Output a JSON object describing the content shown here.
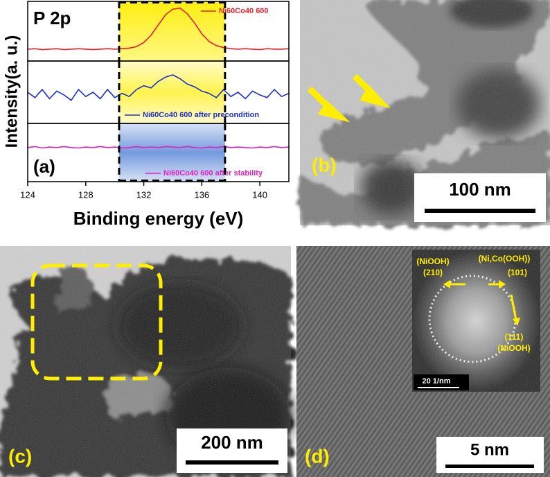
{
  "chart_data": [
    {
      "type": "line",
      "label": "P 2p",
      "ylabel": "Intensity(a. u.)",
      "xlim": [
        124,
        142
      ],
      "ylim": [
        0,
        1
      ],
      "highlight": [
        130.3,
        137.6
      ],
      "highlight_color": "#ffee00",
      "legend": "upper right",
      "x": [
        124,
        124.5,
        125,
        125.5,
        126,
        126.5,
        127,
        127.5,
        128,
        128.5,
        129,
        129.5,
        130,
        130.5,
        131,
        131.5,
        132,
        132.5,
        133,
        133.5,
        134,
        134.5,
        135,
        135.5,
        136,
        136.5,
        137,
        137.5,
        138,
        138.5,
        139,
        139.5,
        140,
        140.5,
        141,
        141.5,
        142
      ],
      "series": [
        {
          "name": "Ni60Co40 600",
          "color": "#e8202a",
          "values": [
            0.15,
            0.16,
            0.14,
            0.15,
            0.16,
            0.14,
            0.15,
            0.16,
            0.15,
            0.14,
            0.15,
            0.16,
            0.15,
            0.16,
            0.17,
            0.2,
            0.28,
            0.42,
            0.62,
            0.82,
            0.93,
            0.95,
            0.84,
            0.66,
            0.45,
            0.3,
            0.22,
            0.18,
            0.16,
            0.15,
            0.16,
            0.15,
            0.14,
            0.16,
            0.15,
            0.15,
            0.16
          ]
        }
      ]
    },
    {
      "type": "line",
      "xlim": [
        124,
        142
      ],
      "ylim": [
        0,
        1
      ],
      "highlight": [
        130.3,
        137.6
      ],
      "highlight_color": "#ffee00",
      "legend": "lower right",
      "x": [
        124,
        124.5,
        125,
        125.5,
        126,
        126.5,
        127,
        127.5,
        128,
        128.5,
        129,
        129.5,
        130,
        130.5,
        131,
        131.5,
        132,
        132.5,
        133,
        133.5,
        134,
        134.5,
        135,
        135.5,
        136,
        136.5,
        137,
        137.5,
        138,
        138.5,
        139,
        139.5,
        140,
        140.5,
        141,
        141.5,
        142
      ],
      "series": [
        {
          "name": "Ni60Co40 600 after precondition",
          "color": "#1a2fc8",
          "values": [
            0.5,
            0.4,
            0.55,
            0.38,
            0.52,
            0.45,
            0.35,
            0.55,
            0.42,
            0.5,
            0.38,
            0.55,
            0.4,
            0.48,
            0.42,
            0.55,
            0.62,
            0.58,
            0.7,
            0.78,
            0.82,
            0.75,
            0.65,
            0.6,
            0.52,
            0.48,
            0.4,
            0.55,
            0.42,
            0.5,
            0.38,
            0.52,
            0.45,
            0.4,
            0.55,
            0.42,
            0.48
          ]
        }
      ]
    },
    {
      "type": "line",
      "label": "(a)",
      "xlabel": "Binding energy (eV)",
      "xlim": [
        124,
        142
      ],
      "ylim": [
        0,
        1
      ],
      "xticks": [
        124,
        128,
        132,
        136,
        140
      ],
      "highlight": [
        130.3,
        137.6
      ],
      "highlight_color": "#3a6fd0",
      "legend": "lower right",
      "x": [
        124,
        124.5,
        125,
        125.5,
        126,
        126.5,
        127,
        127.5,
        128,
        128.5,
        129,
        129.5,
        130,
        130.5,
        131,
        131.5,
        132,
        132.5,
        133,
        133.5,
        134,
        134.5,
        135,
        135.5,
        136,
        136.5,
        137,
        137.5,
        138,
        138.5,
        139,
        139.5,
        140,
        140.5,
        141,
        141.5,
        142
      ],
      "series": [
        {
          "name": "Ni60Co40 600 after stability",
          "color": "#e020c0",
          "values": [
            0.6,
            0.62,
            0.59,
            0.61,
            0.6,
            0.62,
            0.6,
            0.59,
            0.61,
            0.6,
            0.62,
            0.6,
            0.61,
            0.59,
            0.6,
            0.62,
            0.6,
            0.61,
            0.6,
            0.62,
            0.61,
            0.6,
            0.62,
            0.6,
            0.59,
            0.61,
            0.6,
            0.62,
            0.6,
            0.61,
            0.6,
            0.59,
            0.61,
            0.6,
            0.62,
            0.6,
            0.61
          ]
        }
      ]
    }
  ],
  "panels": {
    "b": {
      "label": "(b)",
      "scale_bar": "100 nm"
    },
    "c": {
      "label": "(c)",
      "scale_bar": "200 nm"
    },
    "d": {
      "label": "(d)",
      "scale_bar": "5 nm",
      "inset": {
        "labels": [
          "(NiOOH)",
          "(210)",
          "(Ni,Co(OOH))",
          "(101)",
          "(111)",
          "(NiOOH)"
        ],
        "scale_bar": "20 1/nm"
      }
    }
  }
}
